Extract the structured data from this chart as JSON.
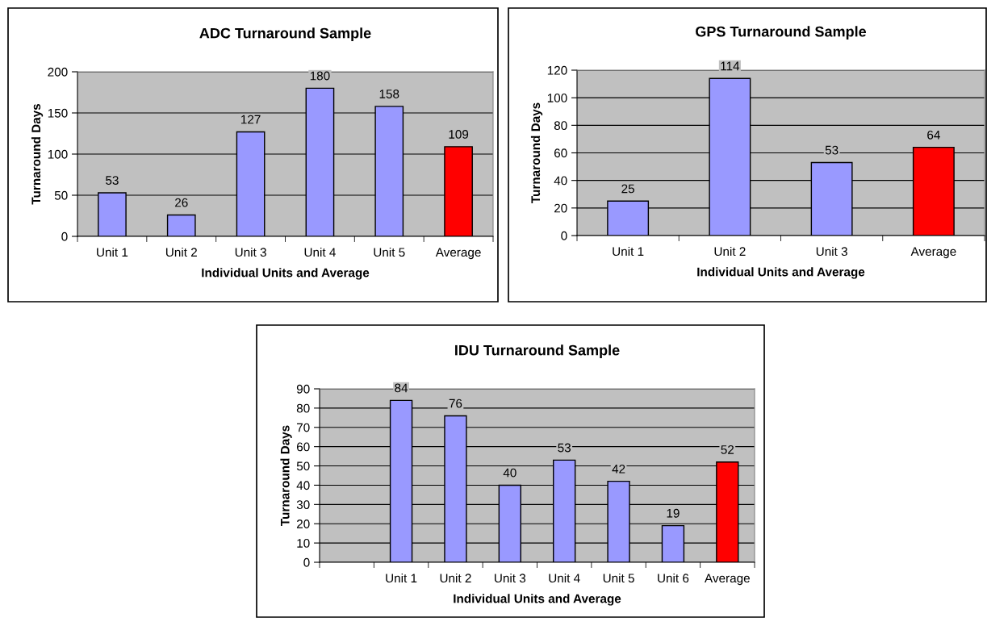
{
  "chart_data": [
    {
      "type": "bar",
      "title": "ADC Turnaround Sample",
      "xlabel": "Individual Units and Average",
      "ylabel": "Turnaround Days",
      "categories": [
        "Unit 1",
        "Unit 2",
        "Unit 3",
        "Unit 4",
        "Unit 5",
        "Average"
      ],
      "values": [
        53,
        26,
        127,
        180,
        158,
        109
      ],
      "colors": [
        "#9999ff",
        "#9999ff",
        "#9999ff",
        "#9999ff",
        "#9999ff",
        "#ff0000"
      ],
      "ylim": [
        0,
        200
      ],
      "yticks": [
        0,
        50,
        100,
        150,
        200
      ],
      "grid": "y",
      "data_labels": true
    },
    {
      "type": "bar",
      "title": "GPS Turnaround Sample",
      "xlabel": "Individual Units and Average",
      "ylabel": "Turnaround Days",
      "categories": [
        "Unit 1",
        "Unit 2",
        "Unit 3",
        "Average"
      ],
      "values": [
        25,
        114,
        53,
        64
      ],
      "colors": [
        "#9999ff",
        "#9999ff",
        "#9999ff",
        "#ff0000"
      ],
      "ylim": [
        0,
        120
      ],
      "yticks": [
        0,
        20,
        40,
        60,
        80,
        100,
        120
      ],
      "grid": "y",
      "data_labels": true
    },
    {
      "type": "bar",
      "title": "IDU Turnaround Sample",
      "xlabel": "Individual Units and Average",
      "ylabel": "Turnaround Days",
      "categories": [
        null,
        "Unit 1",
        "Unit 2",
        "Unit 3",
        "Unit 4",
        "Unit 5",
        "Unit 6",
        "Average"
      ],
      "values": [
        null,
        84,
        76,
        40,
        53,
        42,
        19,
        52
      ],
      "colors": [
        "#9999ff",
        "#9999ff",
        "#9999ff",
        "#9999ff",
        "#9999ff",
        "#9999ff",
        "#9999ff",
        "#ff0000"
      ],
      "ylim": [
        0,
        90
      ],
      "yticks": [
        0,
        10,
        20,
        30,
        40,
        50,
        60,
        70,
        80,
        90
      ],
      "grid": "y",
      "data_labels": true
    }
  ]
}
